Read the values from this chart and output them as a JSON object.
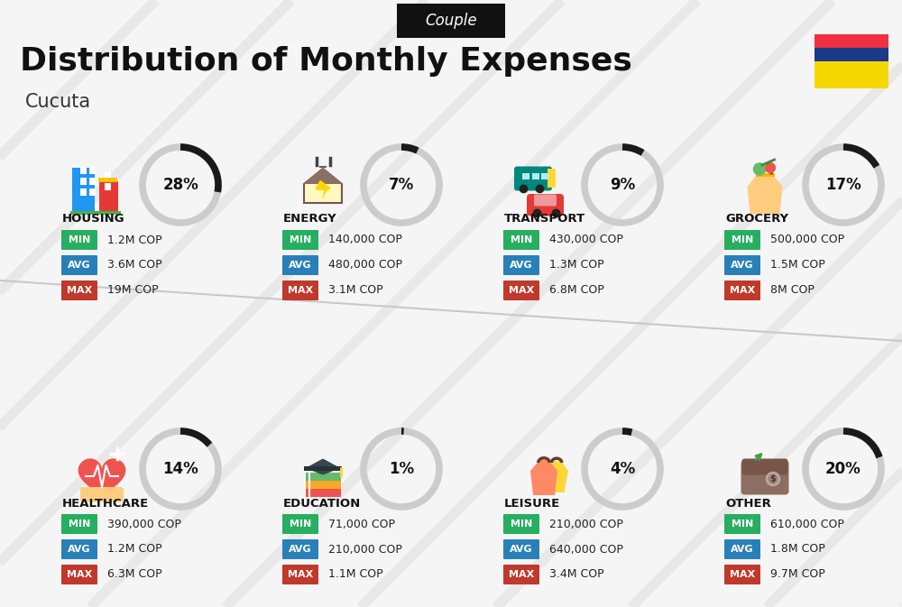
{
  "title": "Distribution of Monthly Expenses",
  "subtitle": "Cucuta",
  "header_label": "Couple",
  "bg_color": "#f5f5f5",
  "categories": [
    {
      "name": "HOUSING",
      "pct": 28,
      "min": "1.2M COP",
      "avg": "3.6M COP",
      "max": "19M COP",
      "row": 0,
      "col": 0
    },
    {
      "name": "ENERGY",
      "pct": 7,
      "min": "140,000 COP",
      "avg": "480,000 COP",
      "max": "3.1M COP",
      "row": 0,
      "col": 1
    },
    {
      "name": "TRANSPORT",
      "pct": 9,
      "min": "430,000 COP",
      "avg": "1.3M COP",
      "max": "6.8M COP",
      "row": 0,
      "col": 2
    },
    {
      "name": "GROCERY",
      "pct": 17,
      "min": "500,000 COP",
      "avg": "1.5M COP",
      "max": "8M COP",
      "row": 0,
      "col": 3
    },
    {
      "name": "HEALTHCARE",
      "pct": 14,
      "min": "390,000 COP",
      "avg": "1.2M COP",
      "max": "6.3M COP",
      "row": 1,
      "col": 0
    },
    {
      "name": "EDUCATION",
      "pct": 1,
      "min": "71,000 COP",
      "avg": "210,000 COP",
      "max": "1.1M COP",
      "row": 1,
      "col": 1
    },
    {
      "name": "LEISURE",
      "pct": 4,
      "min": "210,000 COP",
      "avg": "640,000 COP",
      "max": "3.4M COP",
      "row": 1,
      "col": 2
    },
    {
      "name": "OTHER",
      "pct": 20,
      "min": "610,000 COP",
      "avg": "1.8M COP",
      "max": "9.7M COP",
      "row": 1,
      "col": 3
    }
  ],
  "color_min": "#27ae60",
  "color_avg": "#2980b9",
  "color_max": "#c0392b",
  "arc_color_dark": "#1a1a1a",
  "arc_color_light": "#cccccc",
  "flag_colors": [
    "#F5D800",
    "#1A3A8A",
    "#F03040"
  ],
  "flag_stripe_ratios": [
    0.5,
    0.25,
    0.25
  ],
  "title_fontsize": 26,
  "subtitle_fontsize": 15,
  "header_fontsize": 12
}
